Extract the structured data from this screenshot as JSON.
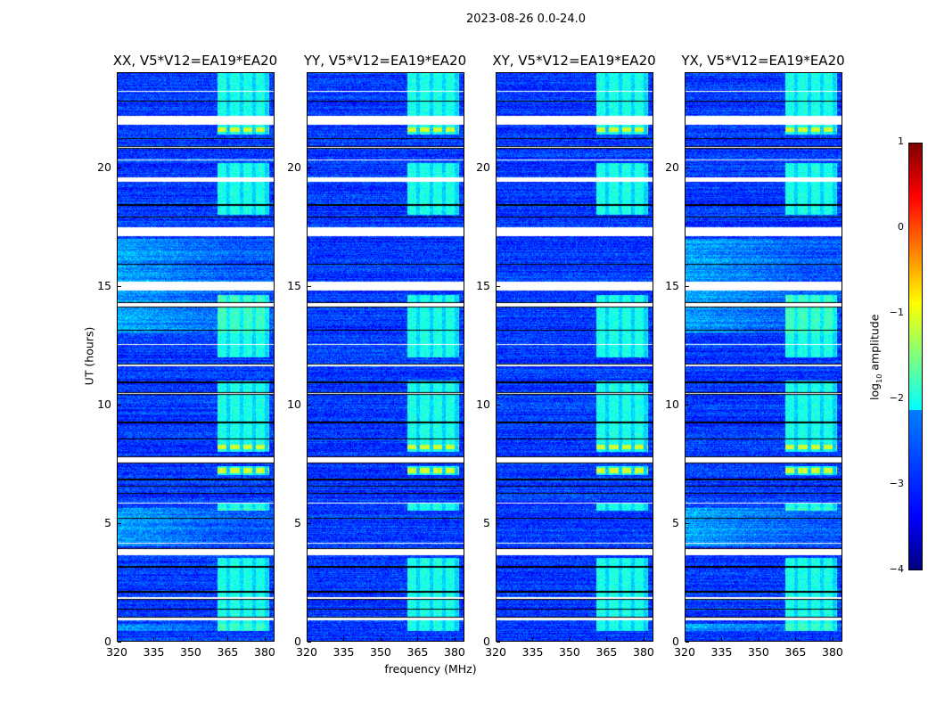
{
  "chart_data": {
    "type": "heatmap",
    "suptitle": "2023-08-26 0.0-24.0",
    "panels": [
      {
        "title": "XX, V5*V12=EA19*EA20",
        "pol": "XX"
      },
      {
        "title": "YY, V5*V12=EA19*EA20",
        "pol": "YY"
      },
      {
        "title": "XY, V5*V12=EA19*EA20",
        "pol": "XY"
      },
      {
        "title": "YX, V5*V12=EA19*EA20",
        "pol": "YX"
      }
    ],
    "xlabel": "frequency (MHz)",
    "ylabel": "UT (hours)",
    "xlim": [
      320,
      384
    ],
    "ylim": [
      0,
      24
    ],
    "xticks": [
      "320",
      "335",
      "350",
      "365",
      "380"
    ],
    "xtick_values": [
      320,
      335,
      350,
      365,
      380
    ],
    "yticks": [
      "0",
      "5",
      "10",
      "15",
      "20"
    ],
    "ytick_values": [
      0,
      5,
      10,
      15,
      20
    ],
    "colormap": "jet",
    "colorbar": {
      "label": "log10 amplitude",
      "label_main": "log",
      "label_sub": "10",
      "label_rest": " amplitude",
      "range": [
        -4,
        1
      ],
      "ticks": [
        "1",
        "0",
        "−1",
        "−2",
        "−3",
        "−4"
      ],
      "tick_values": [
        1,
        0,
        -1,
        -2,
        -3,
        -4
      ]
    },
    "background_level": -3.1,
    "rfi_band_mhz": [
      361,
      382
    ],
    "rfi_level": -2.1,
    "rfi_active_hours": [
      [
        0.4,
        3.5
      ],
      [
        5.5,
        5.8
      ],
      [
        7.0,
        7.4
      ],
      [
        8.0,
        11.0
      ],
      [
        12.0,
        14.6
      ],
      [
        18.0,
        20.2
      ],
      [
        21.4,
        24
      ]
    ],
    "strong_rfi_hours": [
      [
        8.1,
        8.3
      ],
      [
        7.1,
        7.3
      ],
      [
        21.5,
        21.7
      ]
    ],
    "flagged_hours": [
      [
        0.85,
        1.0
      ],
      [
        1.3,
        1.35
      ],
      [
        1.75,
        1.85
      ],
      [
        2.05,
        2.1
      ],
      [
        3.1,
        3.15
      ],
      [
        3.6,
        3.9
      ],
      [
        4.1,
        4.15
      ],
      [
        5.15,
        5.2
      ],
      [
        5.8,
        5.85
      ],
      [
        6.2,
        6.25
      ],
      [
        6.5,
        6.55
      ],
      [
        6.8,
        6.85
      ],
      [
        7.5,
        7.8
      ],
      [
        8.5,
        8.55
      ],
      [
        9.2,
        9.25
      ],
      [
        10.4,
        10.5
      ],
      [
        10.9,
        10.95
      ],
      [
        11.6,
        11.7
      ],
      [
        12.5,
        12.55
      ],
      [
        13.1,
        13.15
      ],
      [
        14.1,
        14.3
      ],
      [
        14.8,
        15.2
      ],
      [
        15.9,
        15.95
      ],
      [
        17.1,
        17.5
      ],
      [
        17.9,
        17.95
      ],
      [
        18.4,
        18.45
      ],
      [
        19.4,
        19.6
      ],
      [
        20.3,
        20.35
      ],
      [
        20.8,
        20.9
      ],
      [
        21.2,
        21.25
      ],
      [
        21.8,
        22.2
      ],
      [
        22.8,
        22.85
      ],
      [
        23.2,
        23.25
      ]
    ],
    "low_freq_enhanced_hours": {
      "XX": [
        [
          0.4,
          0.7
        ],
        [
          4.0,
          5.6
        ],
        [
          13.0,
          17.0
        ]
      ],
      "YX": [
        [
          0.4,
          0.7
        ],
        [
          4.0,
          5.6
        ],
        [
          13.0,
          17.0
        ]
      ]
    }
  }
}
